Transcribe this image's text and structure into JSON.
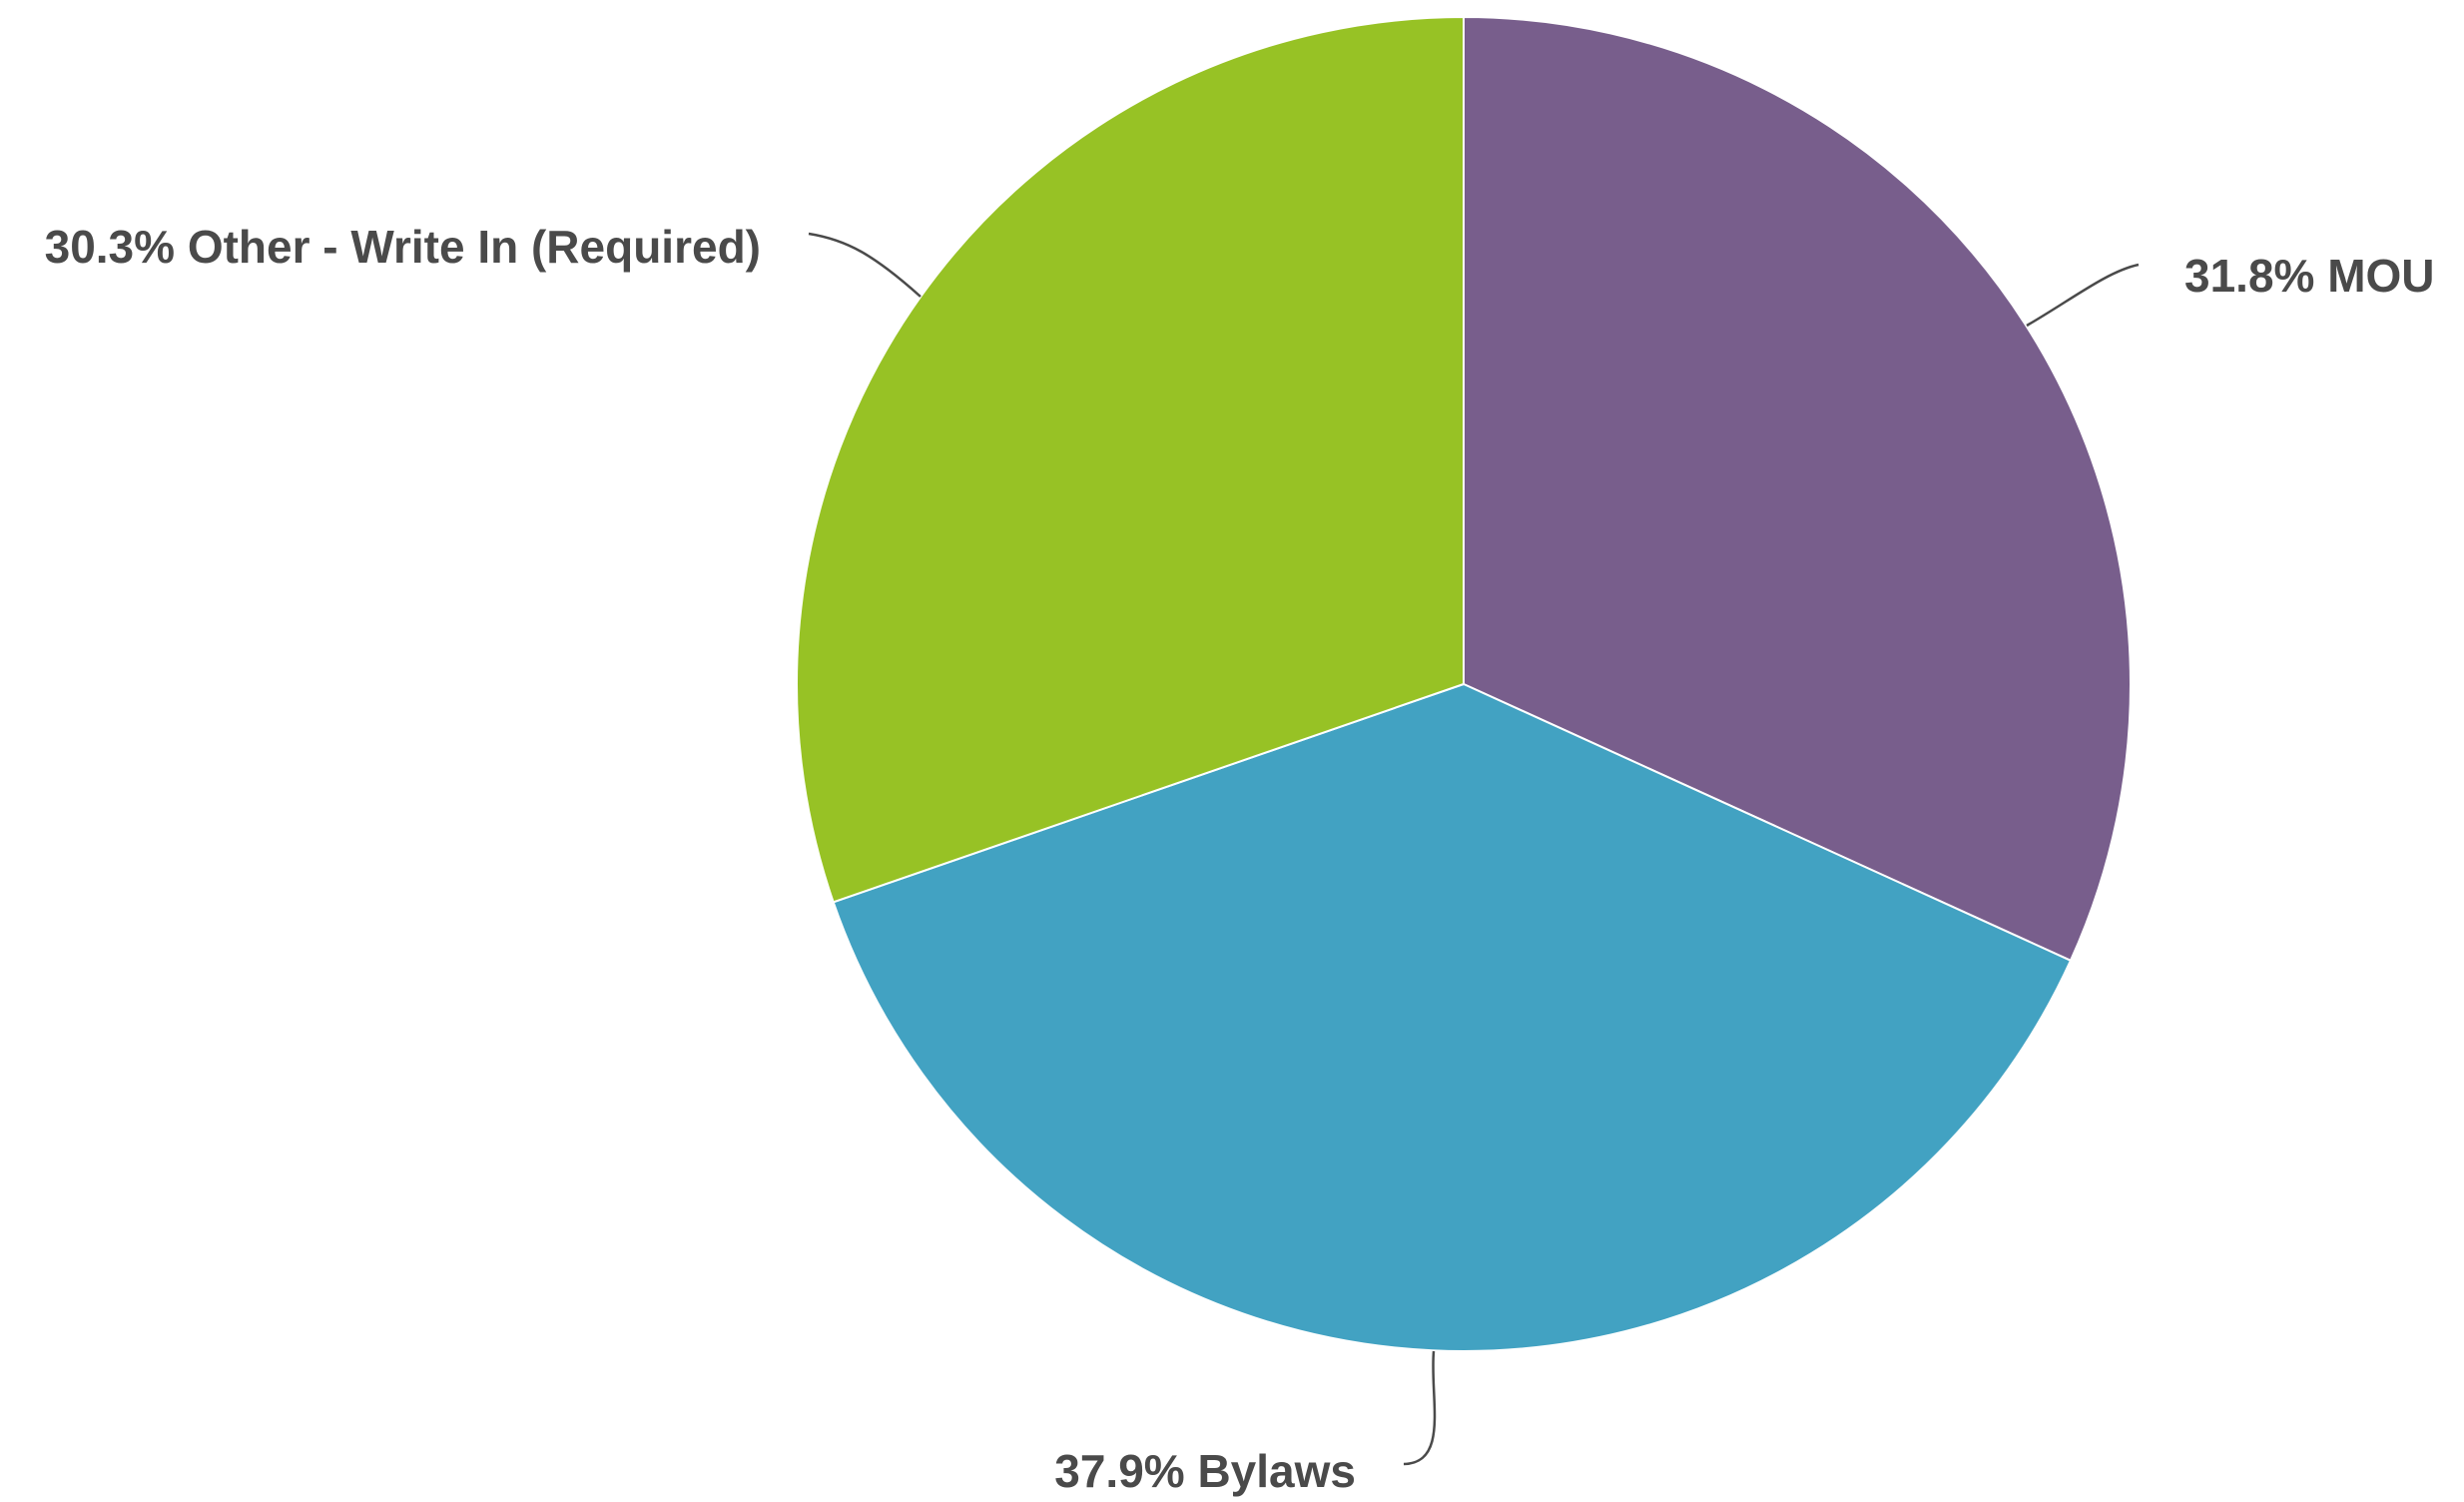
{
  "chart_data": {
    "type": "pie",
    "start_angle_deg": 0,
    "direction": "clockwise",
    "slices": [
      {
        "label": "MOU",
        "value": 31.8,
        "display": "31.8% MOU",
        "color": "#785e8c"
      },
      {
        "label": "Bylaws",
        "value": 37.9,
        "display": "37.9% Bylaws",
        "color": "#42a2c2"
      },
      {
        "label": "Other - Write In (Required)",
        "value": 30.3,
        "display": "30.3% Other - Write In (Required)",
        "color": "#97c225"
      }
    ]
  }
}
